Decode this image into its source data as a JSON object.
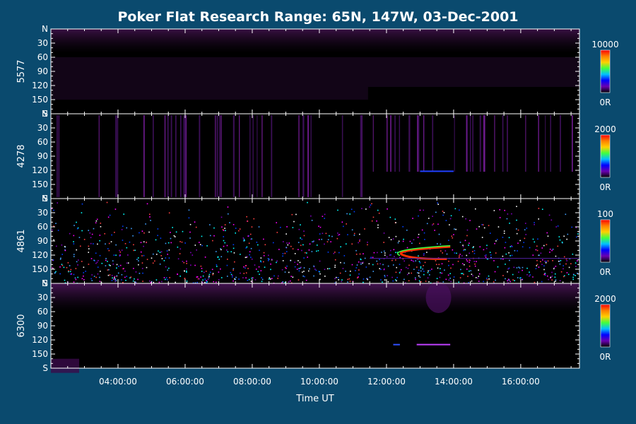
{
  "colors": {
    "background": "#0a4a6e",
    "plot_background": "#000000",
    "axis": "#ffffff",
    "text": "#ffffff",
    "colorbar_stops": [
      "#ff0000",
      "#ff8000",
      "#ffd000",
      "#40ff40",
      "#00c0ff",
      "#0000ff",
      "#6a00b0",
      "#000000"
    ]
  },
  "chart_data": {
    "type": "heatmap",
    "title": "Poker Flat Research Range: 65N, 147W, 03-Dec-2001",
    "xlabel": "Time UT",
    "x_range_hours": [
      2.0,
      17.75
    ],
    "x_ticks": [
      {
        "hour": 4,
        "label": "04:00:00"
      },
      {
        "hour": 6,
        "label": "06:00:00"
      },
      {
        "hour": 8,
        "label": "08:00:00"
      },
      {
        "hour": 10,
        "label": "10:00:00"
      },
      {
        "hour": 12,
        "label": "12:00:00"
      },
      {
        "hour": 14,
        "label": "14:00:00"
      },
      {
        "hour": 16,
        "label": "16:00:00"
      }
    ],
    "y_range_deg": [
      0,
      180
    ],
    "y_ticks": [
      {
        "deg": 0,
        "label": "N"
      },
      {
        "deg": 30,
        "label": "30"
      },
      {
        "deg": 60,
        "label": "60"
      },
      {
        "deg": 90,
        "label": "90"
      },
      {
        "deg": 120,
        "label": "120"
      },
      {
        "deg": 150,
        "label": "150"
      },
      {
        "deg": 180,
        "label": "S"
      }
    ],
    "colorbar_unit_min_label": "0R",
    "panels": [
      {
        "wavelength": "5577",
        "max": 10000,
        "max_label": "10000"
      },
      {
        "wavelength": "4278",
        "max": 2000,
        "max_label": "2000"
      },
      {
        "wavelength": "4861",
        "max": 100,
        "max_label": "100"
      },
      {
        "wavelength": "6300",
        "max": 2000,
        "max_label": "2000"
      }
    ]
  }
}
